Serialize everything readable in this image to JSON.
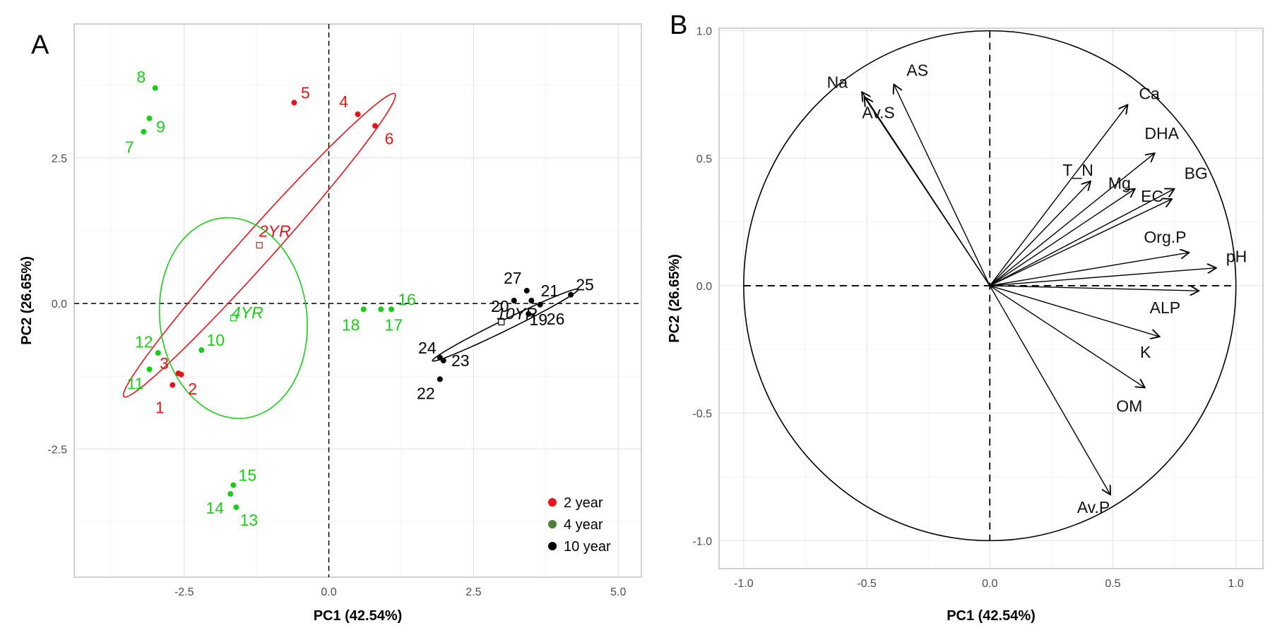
{
  "chart_data": [
    {
      "type": "scatter",
      "panel_label": "A",
      "xlabel": "PC1 (42.54%)",
      "ylabel": "PC2 (26.65%)",
      "xlim": [
        -4.4,
        5.4
      ],
      "ylim": [
        -4.7,
        4.8
      ],
      "xticks": [
        -2.5,
        0.0,
        2.5,
        5.0
      ],
      "xtick_labels": [
        "-2.5",
        "0.0",
        "2.5",
        "5.0"
      ],
      "yticks": [
        -2.5,
        0.0,
        2.5
      ],
      "ytick_labels": [
        "-2.5",
        "0.0",
        "2.5"
      ],
      "grid": true,
      "reference_lines": {
        "x": 0,
        "y": 0,
        "style": "dashed"
      },
      "legend_position": "bottom-right",
      "series": [
        {
          "name": "2 year",
          "color": "#e8141c",
          "points": [
            {
              "label": "1",
              "x": -2.7,
              "y": -1.4
            },
            {
              "label": "2",
              "x": -2.55,
              "y": -1.22
            },
            {
              "label": "3",
              "x": -2.6,
              "y": -1.2
            },
            {
              "label": "4",
              "x": 0.5,
              "y": 3.25
            },
            {
              "label": "5",
              "x": -0.6,
              "y": 3.45
            },
            {
              "label": "6",
              "x": 0.8,
              "y": 3.05
            }
          ],
          "centroid": {
            "label": "2YR",
            "x": -1.2,
            "y": 1.0
          },
          "ellipse": {
            "cx": -1.2,
            "cy": 1.0,
            "rx": 3.5,
            "ry": 0.28,
            "angle_deg": 48
          }
        },
        {
          "name": "4 year",
          "color": "#1bcc1b",
          "legend_color": "#4e7f36",
          "points": [
            {
              "label": "7",
              "x": -3.2,
              "y": 2.95
            },
            {
              "label": "8",
              "x": -3.0,
              "y": 3.7
            },
            {
              "label": "9",
              "x": -3.1,
              "y": 3.18
            },
            {
              "label": "10",
              "x": -2.2,
              "y": -0.8
            },
            {
              "label": "11",
              "x": -3.1,
              "y": -1.13
            },
            {
              "label": "12",
              "x": -2.95,
              "y": -0.85
            },
            {
              "label": "13",
              "x": -1.6,
              "y": -3.5
            },
            {
              "label": "14",
              "x": -1.7,
              "y": -3.27
            },
            {
              "label": "15",
              "x": -1.65,
              "y": -3.12
            },
            {
              "label": "16",
              "x": 1.08,
              "y": -0.1
            },
            {
              "label": "17",
              "x": 0.9,
              "y": -0.1
            },
            {
              "label": "18",
              "x": 0.6,
              "y": -0.1
            }
          ],
          "centroid": {
            "label": "4YR",
            "x": -1.65,
            "y": -0.25
          },
          "ellipse": {
            "cx": -1.65,
            "cy": -0.25,
            "rx": 1.73,
            "ry": 1.27,
            "angle_deg": 97
          }
        },
        {
          "name": "10 year",
          "color": "#000000",
          "points": [
            {
              "label": "19",
              "x": 3.45,
              "y": -0.18
            },
            {
              "label": "20",
              "x": 3.2,
              "y": 0.05
            },
            {
              "label": "21",
              "x": 3.5,
              "y": 0.05
            },
            {
              "label": "22",
              "x": 1.92,
              "y": -1.3
            },
            {
              "label": "23",
              "x": 1.98,
              "y": -0.98
            },
            {
              "label": "24",
              "x": 1.92,
              "y": -0.93
            },
            {
              "label": "25",
              "x": 4.18,
              "y": 0.15
            },
            {
              "label": "26",
              "x": 3.65,
              "y": -0.02
            },
            {
              "label": "27",
              "x": 3.42,
              "y": 0.22
            }
          ],
          "centroid": {
            "label": "10YR",
            "x": 2.98,
            "y": -0.32
          },
          "ellipse": {
            "cx": 3.05,
            "cy": -0.37,
            "rx": 1.4,
            "ry": 0.09,
            "angle_deg": 26
          }
        }
      ]
    },
    {
      "type": "vector",
      "panel_label": "B",
      "xlabel": "PC1 (42.54%)",
      "ylabel": "PC2 (26.65%)",
      "xlim": [
        -1.1,
        1.11
      ],
      "ylim": [
        -1.11,
        1.01
      ],
      "xticks": [
        -1.0,
        -0.5,
        0.0,
        0.5,
        1.0
      ],
      "xtick_labels": [
        "-1.0",
        "-0.5",
        "0.0",
        "0.5",
        "1.0"
      ],
      "yticks": [
        -1.0,
        -0.5,
        0.0,
        0.5,
        1.0
      ],
      "ytick_labels": [
        "-1.0",
        "-0.5",
        "0.0",
        "0.5",
        "1.0"
      ],
      "grid": true,
      "unit_circle": true,
      "reference_lines": {
        "x": 0,
        "y": 0,
        "style": "dashed"
      },
      "vectors": [
        {
          "name": "Na",
          "x": -0.52,
          "y": 0.76
        },
        {
          "name": "AS",
          "x": -0.39,
          "y": 0.79
        },
        {
          "name": "Av.S",
          "x": -0.51,
          "y": 0.74
        },
        {
          "name": "Ca",
          "x": 0.56,
          "y": 0.71
        },
        {
          "name": "DHA",
          "x": 0.67,
          "y": 0.52
        },
        {
          "name": "T_N",
          "x": 0.41,
          "y": 0.41
        },
        {
          "name": "Mg",
          "x": 0.59,
          "y": 0.38
        },
        {
          "name": "BG",
          "x": 0.75,
          "y": 0.38
        },
        {
          "name": "EC",
          "x": 0.74,
          "y": 0.34
        },
        {
          "name": "Org.P",
          "x": 0.81,
          "y": 0.13
        },
        {
          "name": "pH",
          "x": 0.92,
          "y": 0.07
        },
        {
          "name": "ALP",
          "x": 0.85,
          "y": -0.02
        },
        {
          "name": "K",
          "x": 0.69,
          "y": -0.2
        },
        {
          "name": "OM",
          "x": 0.63,
          "y": -0.4
        },
        {
          "name": "Av.P",
          "x": 0.49,
          "y": -0.82
        }
      ]
    }
  ]
}
